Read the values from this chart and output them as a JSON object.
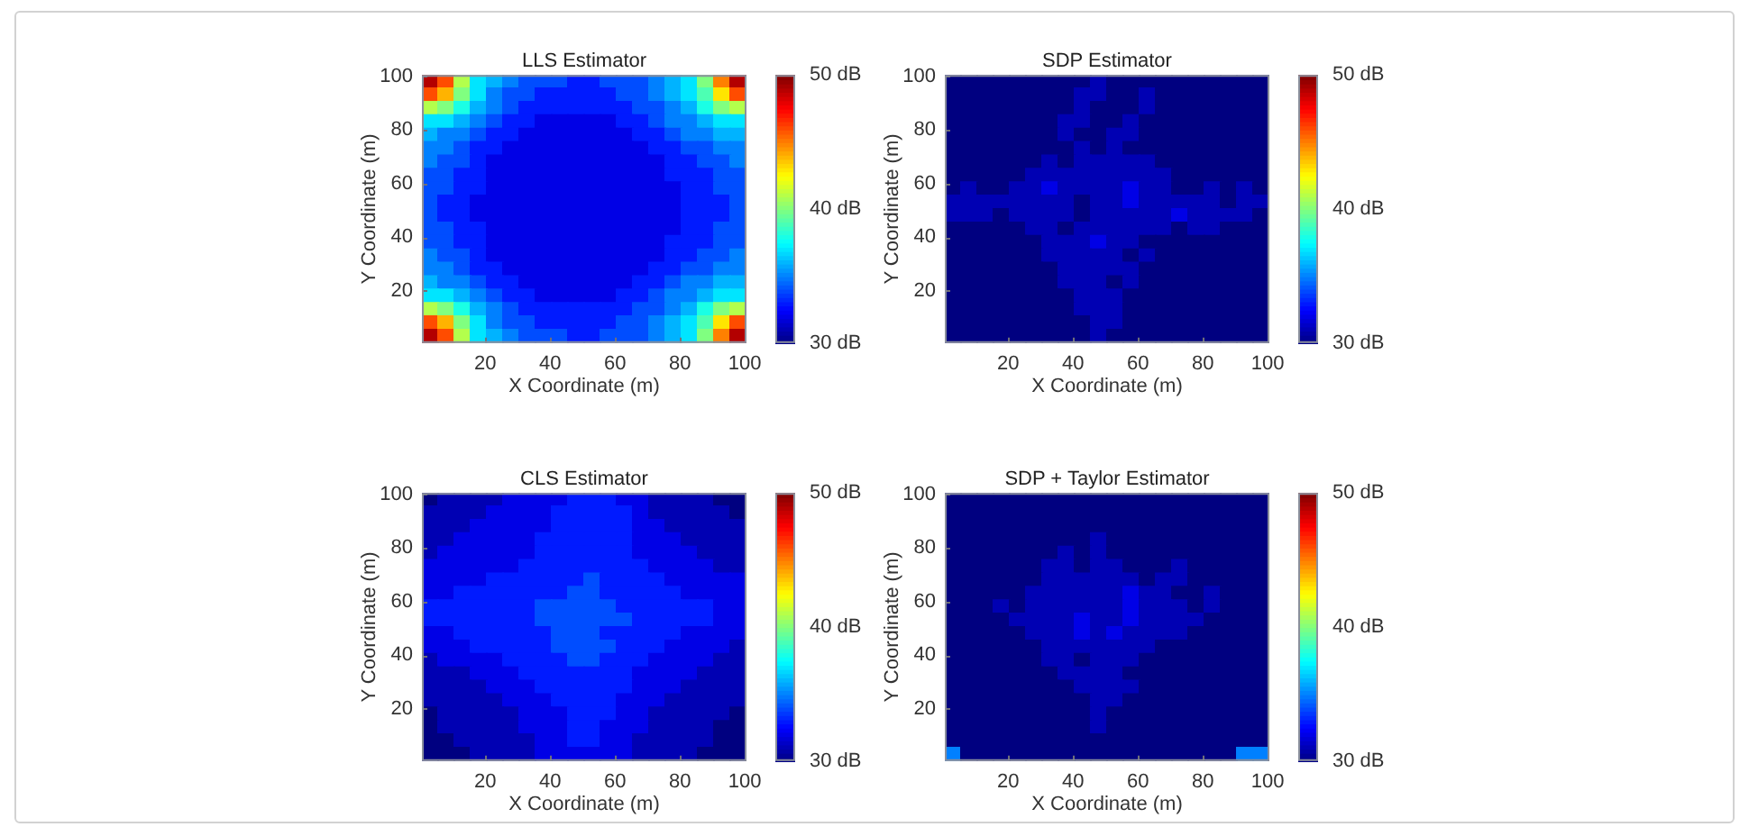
{
  "chart_data": [
    {
      "type": "heatmap",
      "title": "LLS Estimator",
      "xlabel": "X Coordinate (m)",
      "ylabel": "Y Coordinate (m)",
      "x": [
        3,
        8,
        13,
        18,
        23,
        28,
        33,
        38,
        43,
        48,
        53,
        58,
        63,
        68,
        73,
        78,
        83,
        88,
        93,
        98
      ],
      "y": [
        98,
        93,
        88,
        83,
        78,
        73,
        68,
        63,
        58,
        53,
        48,
        43,
        38,
        33,
        28,
        23,
        18,
        13,
        8,
        3
      ],
      "xlim": [
        0.5,
        100.5
      ],
      "xticks": [
        20,
        40,
        60,
        80,
        100
      ],
      "ylim": [
        0.5,
        100.5
      ],
      "yticks": [
        20,
        40,
        60,
        80,
        100
      ],
      "clim": [
        30,
        50
      ],
      "cticks": [
        {
          "value": 30,
          "label": "30 dB"
        },
        {
          "value": 40,
          "label": "40 dB"
        },
        {
          "value": 50,
          "label": "50 dB"
        }
      ],
      "cells": [
        [
          49,
          46,
          41,
          37,
          36,
          35,
          34,
          34,
          34,
          33,
          33,
          34,
          34,
          34,
          35,
          36,
          37,
          40,
          45,
          49
        ],
        [
          46,
          44,
          40,
          37,
          35,
          34,
          34,
          33,
          33,
          33,
          33,
          33,
          34,
          34,
          35,
          36,
          37,
          39,
          43,
          46
        ],
        [
          41,
          40,
          38,
          36,
          35,
          34,
          33,
          33,
          33,
          33,
          33,
          33,
          33,
          34,
          34,
          35,
          36,
          38,
          40,
          41
        ],
        [
          37,
          37,
          36,
          35,
          34,
          33,
          33,
          32,
          32,
          32,
          32,
          32,
          33,
          33,
          34,
          35,
          35,
          36,
          37,
          37
        ],
        [
          36,
          35,
          35,
          34,
          33,
          33,
          32,
          32,
          32,
          32,
          32,
          32,
          32,
          33,
          33,
          34,
          35,
          35,
          36,
          36
        ],
        [
          35,
          35,
          34,
          33,
          33,
          32,
          32,
          32,
          32,
          32,
          32,
          32,
          32,
          32,
          33,
          33,
          34,
          34,
          35,
          35
        ],
        [
          35,
          34,
          34,
          33,
          32,
          32,
          32,
          32,
          32,
          32,
          32,
          32,
          32,
          32,
          32,
          33,
          33,
          34,
          34,
          35
        ],
        [
          34,
          34,
          33,
          33,
          32,
          32,
          32,
          32,
          32,
          32,
          32,
          32,
          32,
          32,
          32,
          33,
          33,
          33,
          34,
          34
        ],
        [
          34,
          34,
          33,
          33,
          32,
          32,
          32,
          32,
          32,
          32,
          32,
          32,
          32,
          32,
          32,
          32,
          33,
          33,
          34,
          34
        ],
        [
          34,
          33,
          33,
          32,
          32,
          32,
          32,
          32,
          32,
          32,
          32,
          32,
          32,
          32,
          32,
          32,
          33,
          33,
          33,
          34
        ],
        [
          34,
          33,
          33,
          32,
          32,
          32,
          32,
          32,
          32,
          32,
          32,
          32,
          32,
          32,
          32,
          32,
          33,
          33,
          33,
          34
        ],
        [
          34,
          34,
          33,
          33,
          32,
          32,
          32,
          32,
          32,
          32,
          32,
          32,
          32,
          32,
          32,
          32,
          33,
          33,
          34,
          34
        ],
        [
          34,
          34,
          33,
          33,
          32,
          32,
          32,
          32,
          32,
          32,
          32,
          32,
          32,
          32,
          32,
          33,
          33,
          33,
          34,
          34
        ],
        [
          35,
          34,
          34,
          33,
          32,
          32,
          32,
          32,
          32,
          32,
          32,
          32,
          32,
          32,
          32,
          33,
          33,
          34,
          34,
          35
        ],
        [
          35,
          35,
          34,
          33,
          33,
          32,
          32,
          32,
          32,
          32,
          32,
          32,
          32,
          32,
          33,
          33,
          34,
          34,
          35,
          35
        ],
        [
          36,
          35,
          35,
          34,
          33,
          33,
          32,
          32,
          32,
          32,
          32,
          32,
          32,
          33,
          33,
          34,
          35,
          35,
          36,
          36
        ],
        [
          37,
          37,
          36,
          35,
          34,
          33,
          33,
          32,
          32,
          32,
          32,
          32,
          33,
          33,
          34,
          35,
          35,
          36,
          37,
          37
        ],
        [
          41,
          40,
          38,
          36,
          35,
          34,
          33,
          33,
          33,
          33,
          33,
          33,
          33,
          34,
          34,
          35,
          36,
          38,
          40,
          41
        ],
        [
          46,
          44,
          40,
          37,
          35,
          34,
          34,
          33,
          33,
          33,
          33,
          33,
          34,
          34,
          35,
          36,
          37,
          39,
          43,
          46
        ],
        [
          49,
          46,
          41,
          37,
          36,
          35,
          34,
          34,
          34,
          33,
          33,
          34,
          34,
          34,
          35,
          36,
          37,
          40,
          45,
          49
        ]
      ]
    },
    {
      "type": "heatmap",
      "title": "SDP Estimator",
      "xlabel": "X Coordinate (m)",
      "ylabel": "Y Coordinate (m)",
      "x": [
        3,
        8,
        13,
        18,
        23,
        28,
        33,
        38,
        43,
        48,
        53,
        58,
        63,
        68,
        73,
        78,
        83,
        88,
        93,
        98
      ],
      "y": [
        98,
        93,
        88,
        83,
        78,
        73,
        68,
        63,
        58,
        53,
        48,
        43,
        38,
        33,
        28,
        23,
        18,
        13,
        8,
        3
      ],
      "xlim": [
        0.5,
        100.5
      ],
      "xticks": [
        20,
        40,
        60,
        80,
        100
      ],
      "ylim": [
        0.5,
        100.5
      ],
      "yticks": [
        20,
        40,
        60,
        80,
        100
      ],
      "clim": [
        30,
        50
      ],
      "cticks": [
        {
          "value": 30,
          "label": "30 dB"
        },
        {
          "value": 40,
          "label": "40 dB"
        },
        {
          "value": 50,
          "label": "50 dB"
        }
      ],
      "cells": [
        [
          30,
          30,
          30,
          30,
          30,
          30,
          30,
          30,
          30,
          31,
          30,
          30,
          30,
          30,
          30,
          30,
          30,
          30,
          30,
          30
        ],
        [
          30,
          30,
          30,
          30,
          30,
          30,
          30,
          30,
          31,
          31,
          30,
          30,
          31,
          30,
          30,
          30,
          30,
          30,
          30,
          30
        ],
        [
          30,
          30,
          30,
          30,
          30,
          30,
          30,
          30,
          31,
          30,
          30,
          30,
          31,
          30,
          30,
          30,
          30,
          30,
          30,
          30
        ],
        [
          30,
          30,
          30,
          30,
          30,
          30,
          30,
          31,
          31,
          30,
          30,
          31,
          30,
          30,
          30,
          30,
          30,
          30,
          30,
          30
        ],
        [
          30,
          30,
          30,
          30,
          30,
          30,
          30,
          31,
          30,
          30,
          31,
          31,
          30,
          30,
          30,
          30,
          30,
          30,
          30,
          30
        ],
        [
          30,
          30,
          30,
          30,
          30,
          30,
          30,
          30,
          31,
          30,
          31,
          30,
          30,
          30,
          30,
          30,
          30,
          30,
          30,
          30
        ],
        [
          30,
          30,
          30,
          30,
          30,
          30,
          31,
          30,
          31,
          31,
          31,
          31,
          31,
          30,
          30,
          30,
          30,
          30,
          30,
          30
        ],
        [
          30,
          30,
          30,
          30,
          30,
          31,
          31,
          31,
          31,
          31,
          31,
          31,
          31,
          31,
          30,
          30,
          30,
          30,
          30,
          30
        ],
        [
          30,
          31,
          30,
          30,
          31,
          31,
          32,
          31,
          31,
          31,
          31,
          32,
          31,
          31,
          30,
          30,
          31,
          30,
          31,
          30
        ],
        [
          31,
          31,
          31,
          31,
          31,
          31,
          31,
          31,
          30,
          31,
          31,
          32,
          31,
          31,
          31,
          31,
          31,
          30,
          31,
          31
        ],
        [
          31,
          31,
          31,
          30,
          31,
          31,
          31,
          31,
          30,
          31,
          31,
          31,
          31,
          31,
          32,
          31,
          31,
          31,
          31,
          30
        ],
        [
          30,
          30,
          30,
          30,
          30,
          31,
          31,
          30,
          31,
          31,
          31,
          31,
          31,
          31,
          30,
          31,
          31,
          30,
          30,
          30
        ],
        [
          30,
          30,
          30,
          30,
          30,
          30,
          31,
          31,
          31,
          32,
          31,
          31,
          30,
          30,
          30,
          30,
          30,
          30,
          30,
          30
        ],
        [
          30,
          30,
          30,
          30,
          30,
          30,
          31,
          31,
          31,
          31,
          31,
          30,
          31,
          30,
          30,
          30,
          30,
          30,
          30,
          30
        ],
        [
          30,
          30,
          30,
          30,
          30,
          30,
          30,
          31,
          31,
          31,
          31,
          31,
          30,
          30,
          30,
          30,
          30,
          30,
          30,
          30
        ],
        [
          30,
          30,
          30,
          30,
          30,
          30,
          30,
          31,
          31,
          31,
          30,
          31,
          30,
          30,
          30,
          30,
          30,
          30,
          30,
          30
        ],
        [
          30,
          30,
          30,
          30,
          30,
          30,
          30,
          30,
          31,
          31,
          31,
          30,
          30,
          30,
          30,
          30,
          30,
          30,
          30,
          30
        ],
        [
          30,
          30,
          30,
          30,
          30,
          30,
          30,
          30,
          31,
          31,
          31,
          30,
          30,
          30,
          30,
          30,
          30,
          30,
          30,
          30
        ],
        [
          30,
          30,
          30,
          30,
          30,
          30,
          30,
          30,
          30,
          31,
          31,
          30,
          30,
          30,
          30,
          30,
          30,
          30,
          30,
          30
        ],
        [
          30,
          30,
          30,
          30,
          30,
          30,
          30,
          30,
          30,
          31,
          30,
          30,
          30,
          30,
          30,
          30,
          30,
          30,
          30,
          30
        ]
      ]
    },
    {
      "type": "heatmap",
      "title": "CLS Estimator",
      "xlabel": "X Coordinate (m)",
      "ylabel": "Y Coordinate (m)",
      "x": [
        3,
        8,
        13,
        18,
        23,
        28,
        33,
        38,
        43,
        48,
        53,
        58,
        63,
        68,
        73,
        78,
        83,
        88,
        93,
        98
      ],
      "y": [
        98,
        93,
        88,
        83,
        78,
        73,
        68,
        63,
        58,
        53,
        48,
        43,
        38,
        33,
        28,
        23,
        18,
        13,
        8,
        3
      ],
      "xlim": [
        0.5,
        100.5
      ],
      "xticks": [
        20,
        40,
        60,
        80,
        100
      ],
      "ylim": [
        0.5,
        100.5
      ],
      "yticks": [
        20,
        40,
        60,
        80,
        100
      ],
      "clim": [
        30,
        50
      ],
      "cticks": [
        {
          "value": 30,
          "label": "30 dB"
        },
        {
          "value": 40,
          "label": "40 dB"
        },
        {
          "value": 50,
          "label": "50 dB"
        }
      ],
      "cells": [
        [
          30,
          31,
          31,
          31,
          31,
          32,
          32,
          32,
          32,
          33,
          33,
          33,
          32,
          32,
          31,
          31,
          31,
          31,
          30,
          30
        ],
        [
          31,
          31,
          31,
          31,
          32,
          32,
          32,
          32,
          33,
          33,
          33,
          33,
          33,
          32,
          31,
          31,
          31,
          31,
          31,
          30
        ],
        [
          31,
          31,
          31,
          32,
          32,
          32,
          32,
          32,
          33,
          33,
          33,
          33,
          33,
          32,
          32,
          31,
          31,
          31,
          31,
          31
        ],
        [
          31,
          31,
          32,
          32,
          32,
          32,
          32,
          33,
          33,
          33,
          33,
          33,
          33,
          32,
          32,
          32,
          31,
          31,
          31,
          31
        ],
        [
          31,
          32,
          32,
          32,
          32,
          32,
          32,
          33,
          33,
          33,
          33,
          33,
          33,
          32,
          32,
          32,
          32,
          31,
          31,
          31
        ],
        [
          32,
          32,
          32,
          32,
          32,
          32,
          33,
          33,
          33,
          33,
          33,
          33,
          33,
          33,
          32,
          32,
          32,
          32,
          31,
          31
        ],
        [
          32,
          32,
          32,
          32,
          33,
          33,
          33,
          33,
          33,
          33,
          34,
          33,
          33,
          33,
          33,
          32,
          32,
          32,
          32,
          32
        ],
        [
          32,
          32,
          33,
          33,
          33,
          33,
          33,
          33,
          33,
          34,
          34,
          33,
          33,
          33,
          33,
          33,
          32,
          32,
          32,
          32
        ],
        [
          33,
          33,
          33,
          33,
          33,
          33,
          33,
          34,
          34,
          34,
          34,
          34,
          33,
          33,
          33,
          33,
          33,
          33,
          32,
          32
        ],
        [
          33,
          33,
          33,
          33,
          33,
          33,
          33,
          34,
          34,
          34,
          34,
          34,
          34,
          33,
          33,
          33,
          33,
          33,
          32,
          32
        ],
        [
          32,
          32,
          33,
          33,
          33,
          33,
          33,
          33,
          34,
          34,
          34,
          33,
          33,
          33,
          33,
          33,
          32,
          32,
          32,
          32
        ],
        [
          32,
          32,
          32,
          33,
          33,
          33,
          33,
          33,
          34,
          34,
          34,
          34,
          33,
          33,
          33,
          32,
          32,
          32,
          32,
          31
        ],
        [
          31,
          32,
          32,
          32,
          32,
          33,
          33,
          33,
          33,
          34,
          34,
          33,
          33,
          33,
          32,
          32,
          32,
          32,
          31,
          31
        ],
        [
          31,
          31,
          31,
          32,
          32,
          32,
          33,
          33,
          33,
          33,
          33,
          33,
          33,
          32,
          32,
          32,
          32,
          31,
          31,
          31
        ],
        [
          31,
          31,
          31,
          31,
          32,
          32,
          32,
          33,
          33,
          33,
          33,
          33,
          33,
          32,
          32,
          32,
          31,
          31,
          31,
          31
        ],
        [
          31,
          31,
          31,
          31,
          31,
          32,
          32,
          32,
          33,
          33,
          33,
          33,
          32,
          32,
          32,
          31,
          31,
          31,
          31,
          31
        ],
        [
          30,
          31,
          31,
          31,
          31,
          31,
          32,
          32,
          32,
          33,
          33,
          33,
          32,
          32,
          31,
          31,
          31,
          31,
          31,
          30
        ],
        [
          30,
          31,
          31,
          31,
          31,
          31,
          32,
          32,
          32,
          33,
          33,
          32,
          32,
          32,
          31,
          31,
          31,
          31,
          30,
          30
        ],
        [
          30,
          30,
          31,
          31,
          31,
          31,
          31,
          32,
          32,
          33,
          33,
          32,
          32,
          31,
          31,
          31,
          31,
          31,
          30,
          30
        ],
        [
          30,
          30,
          30,
          31,
          31,
          31,
          31,
          32,
          32,
          32,
          32,
          32,
          32,
          31,
          31,
          31,
          31,
          30,
          30,
          30
        ]
      ]
    },
    {
      "type": "heatmap",
      "title": "SDP + Taylor Estimator",
      "xlabel": "X Coordinate (m)",
      "ylabel": "Y Coordinate (m)",
      "x": [
        3,
        8,
        13,
        18,
        23,
        28,
        33,
        38,
        43,
        48,
        53,
        58,
        63,
        68,
        73,
        78,
        83,
        88,
        93,
        98
      ],
      "y": [
        98,
        93,
        88,
        83,
        78,
        73,
        68,
        63,
        58,
        53,
        48,
        43,
        38,
        33,
        28,
        23,
        18,
        13,
        8,
        3
      ],
      "xlim": [
        0.5,
        100.5
      ],
      "xticks": [
        20,
        40,
        60,
        80,
        100
      ],
      "ylim": [
        0.5,
        100.5
      ],
      "yticks": [
        20,
        40,
        60,
        80,
        100
      ],
      "clim": [
        30,
        50
      ],
      "cticks": [
        {
          "value": 30,
          "label": "30 dB"
        },
        {
          "value": 40,
          "label": "40 dB"
        },
        {
          "value": 50,
          "label": "50 dB"
        }
      ],
      "cells": [
        [
          30,
          30,
          30,
          30,
          30,
          30,
          30,
          30,
          30,
          30,
          30,
          30,
          30,
          30,
          30,
          30,
          30,
          30,
          30,
          30
        ],
        [
          30,
          30,
          30,
          30,
          30,
          30,
          30,
          30,
          30,
          30,
          30,
          30,
          30,
          30,
          30,
          30,
          30,
          30,
          30,
          30
        ],
        [
          30,
          30,
          30,
          30,
          30,
          30,
          30,
          30,
          30,
          30,
          30,
          30,
          30,
          30,
          30,
          30,
          30,
          30,
          30,
          30
        ],
        [
          30,
          30,
          30,
          30,
          30,
          30,
          30,
          30,
          30,
          31,
          30,
          30,
          30,
          30,
          30,
          30,
          30,
          30,
          30,
          30
        ],
        [
          30,
          30,
          30,
          30,
          30,
          30,
          30,
          31,
          30,
          31,
          30,
          30,
          30,
          30,
          30,
          30,
          30,
          30,
          30,
          30
        ],
        [
          30,
          30,
          30,
          30,
          30,
          30,
          31,
          31,
          30,
          31,
          31,
          30,
          30,
          30,
          31,
          30,
          30,
          30,
          30,
          30
        ],
        [
          30,
          30,
          30,
          30,
          30,
          30,
          31,
          31,
          31,
          31,
          31,
          31,
          30,
          31,
          31,
          30,
          30,
          30,
          30,
          30
        ],
        [
          30,
          30,
          30,
          30,
          30,
          31,
          31,
          31,
          31,
          31,
          31,
          32,
          31,
          31,
          30,
          30,
          31,
          30,
          30,
          30
        ],
        [
          30,
          30,
          30,
          31,
          30,
          31,
          31,
          31,
          31,
          31,
          31,
          32,
          31,
          31,
          31,
          30,
          31,
          30,
          30,
          30
        ],
        [
          30,
          30,
          30,
          30,
          31,
          31,
          31,
          31,
          32,
          31,
          31,
          32,
          31,
          31,
          31,
          31,
          30,
          30,
          30,
          30
        ],
        [
          30,
          30,
          30,
          30,
          30,
          31,
          31,
          31,
          32,
          31,
          32,
          31,
          31,
          31,
          31,
          30,
          30,
          30,
          30,
          30
        ],
        [
          30,
          30,
          30,
          30,
          30,
          30,
          31,
          31,
          31,
          31,
          31,
          31,
          31,
          30,
          30,
          30,
          30,
          30,
          30,
          30
        ],
        [
          30,
          30,
          30,
          30,
          30,
          30,
          31,
          31,
          30,
          31,
          31,
          31,
          30,
          30,
          30,
          30,
          30,
          30,
          30,
          30
        ],
        [
          30,
          30,
          30,
          30,
          30,
          30,
          30,
          31,
          31,
          31,
          31,
          30,
          30,
          30,
          30,
          30,
          30,
          30,
          30,
          30
        ],
        [
          30,
          30,
          30,
          30,
          30,
          30,
          30,
          30,
          31,
          31,
          31,
          31,
          30,
          30,
          30,
          30,
          30,
          30,
          30,
          30
        ],
        [
          30,
          30,
          30,
          30,
          30,
          30,
          30,
          30,
          30,
          31,
          31,
          30,
          30,
          30,
          30,
          30,
          30,
          30,
          30,
          30
        ],
        [
          30,
          30,
          30,
          30,
          30,
          30,
          30,
          30,
          30,
          31,
          30,
          30,
          30,
          30,
          30,
          30,
          30,
          30,
          30,
          30
        ],
        [
          30,
          30,
          30,
          30,
          30,
          30,
          30,
          30,
          30,
          31,
          30,
          30,
          30,
          30,
          30,
          30,
          30,
          30,
          30,
          30
        ],
        [
          30,
          30,
          30,
          30,
          30,
          30,
          30,
          30,
          30,
          30,
          30,
          30,
          30,
          30,
          30,
          30,
          30,
          30,
          30,
          30
        ],
        [
          35,
          30,
          30,
          30,
          30,
          30,
          30,
          30,
          30,
          30,
          30,
          30,
          30,
          30,
          30,
          30,
          30,
          30,
          35,
          35
        ]
      ]
    }
  ]
}
